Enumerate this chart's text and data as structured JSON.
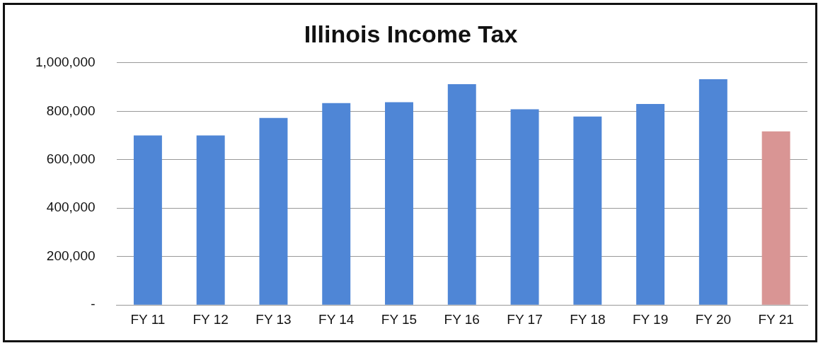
{
  "chart_data": {
    "type": "bar",
    "title": "Illinois Income Tax",
    "categories": [
      "FY 11",
      "FY 12",
      "FY 13",
      "FY 14",
      "FY 15",
      "FY 16",
      "FY 17",
      "FY 18",
      "FY 19",
      "FY 20",
      "FY 21"
    ],
    "values": [
      700000,
      700000,
      772000,
      834000,
      837000,
      912000,
      808000,
      778000,
      830000,
      932000,
      717000
    ],
    "colors": [
      "#4f86d6",
      "#4f86d6",
      "#4f86d6",
      "#4f86d6",
      "#4f86d6",
      "#4f86d6",
      "#4f86d6",
      "#4f86d6",
      "#4f86d6",
      "#4f86d6",
      "#d99594"
    ],
    "ylim": [
      0,
      1000000
    ],
    "yticks": [
      {
        "value": 0,
        "label": "-"
      },
      {
        "value": 200000,
        "label": "200,000"
      },
      {
        "value": 400000,
        "label": "400,000"
      },
      {
        "value": 600000,
        "label": "600,000"
      },
      {
        "value": 800000,
        "label": "800,000"
      },
      {
        "value": 1000000,
        "label": "1,000,000"
      }
    ],
    "grid": "y",
    "legend": false
  }
}
